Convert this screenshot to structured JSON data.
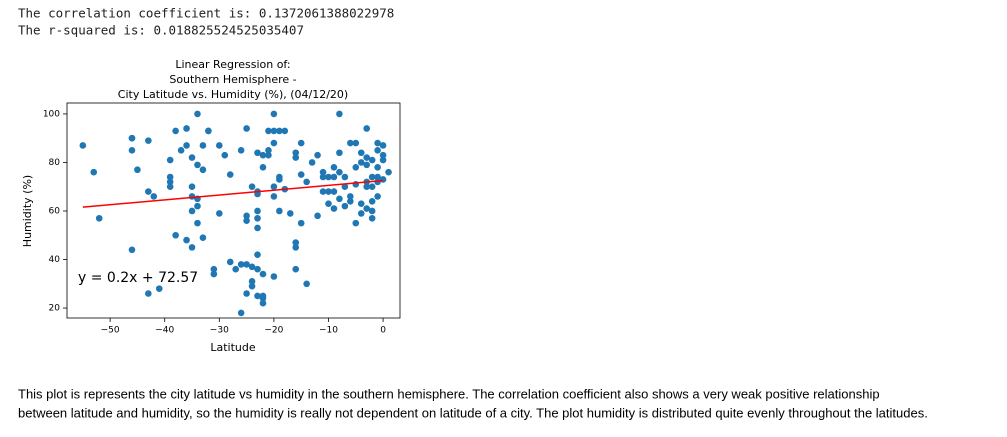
{
  "output": {
    "lines": [
      "The correlation coefficient  is: 0.1372061388022978",
      "The r-squared is: 0.018825524525035407"
    ]
  },
  "chart_data": {
    "type": "scatter",
    "title": [
      "Linear Regression of:",
      "Southern Hemisphere -",
      "City Latitude vs. Humidity (%), (04/12/20)"
    ],
    "xlabel": "Latitude",
    "ylabel": "Humidity (%)",
    "color": "#1f77b4",
    "x": [
      -55,
      -53,
      -52,
      -46,
      -46,
      -46,
      -46,
      -45,
      -43,
      -43,
      -42,
      -43,
      -41,
      -39,
      -39,
      -39,
      -39,
      -38,
      -38,
      -37,
      -36,
      -36,
      -36,
      -35,
      -35,
      -35,
      -35,
      -34,
      -34,
      -34,
      -35,
      -34,
      -34,
      -33,
      -33,
      -33,
      -32,
      -32,
      -31,
      -31,
      -30,
      -30,
      -29,
      -28,
      -28,
      -26,
      -26,
      -25,
      -25,
      -25,
      -25,
      -24,
      -24,
      -24,
      -23,
      -23,
      -23,
      -23,
      -23,
      -23,
      -23,
      -23,
      -23,
      -22,
      -22,
      -22,
      -22,
      -22,
      -21,
      -21,
      -21,
      -20,
      -20,
      -20,
      -20,
      -20,
      -20,
      -19,
      -19,
      -19,
      -19,
      -18,
      -18,
      -17,
      -16,
      -16,
      -16,
      -16,
      -16,
      -15,
      -15,
      -15,
      -14,
      -13,
      -12,
      -12,
      -11,
      -11,
      -10,
      -9,
      -9,
      -8,
      -8,
      -7,
      -7,
      -6,
      -6,
      -5,
      -5,
      -5,
      -4,
      -4,
      -3,
      -3,
      -3,
      -2,
      -2,
      -2,
      -2,
      -1,
      -1,
      -1,
      -1,
      -1,
      0,
      0,
      0,
      1,
      -10,
      -10,
      -9,
      -8,
      -7,
      -5,
      -4,
      -3,
      -4,
      -3,
      -2,
      -1,
      -2,
      0,
      -3,
      -6,
      -26,
      -27,
      -24,
      -11,
      -9,
      -8,
      -14,
      -22,
      -25
    ],
    "values": [
      87,
      76,
      57,
      90,
      90,
      85,
      44,
      77,
      89,
      68,
      66,
      26,
      28,
      74,
      72,
      70,
      81,
      93,
      50,
      85,
      94,
      87,
      48,
      82,
      70,
      66,
      60,
      65,
      62,
      55,
      45,
      100,
      79,
      87,
      77,
      49,
      93,
      93,
      34,
      36,
      59,
      87,
      83,
      75,
      39,
      38,
      85,
      94,
      58,
      56,
      38,
      37,
      31,
      29,
      84,
      68,
      67,
      60,
      57,
      53,
      42,
      36,
      25,
      24,
      22,
      34,
      78,
      83,
      85,
      93,
      83,
      100,
      88,
      93,
      66,
      70,
      33,
      93,
      74,
      73,
      60,
      93,
      69,
      59,
      47,
      45,
      36,
      82,
      84,
      55,
      75,
      88,
      72,
      80,
      83,
      58,
      76,
      74,
      74,
      74,
      78,
      76,
      100,
      74,
      70,
      64,
      66,
      78,
      71,
      88,
      84,
      80,
      82,
      79,
      70,
      81,
      74,
      60,
      57,
      88,
      85,
      78,
      74,
      72,
      81,
      87,
      73,
      76,
      68,
      63,
      68,
      65,
      62,
      55,
      63,
      61,
      59,
      72,
      70,
      66,
      64,
      83,
      94,
      88,
      18,
      36,
      70,
      68,
      61,
      84,
      30,
      25,
      26
    ],
    "regression_line": {
      "x": [
        -55,
        0
      ],
      "values": [
        61.57,
        72.57
      ],
      "color": "#ff0000"
    },
    "annotation": "y = 0.2x + 72.57",
    "xlim": [
      -57.9,
      3.1
    ],
    "ylim": [
      15.9,
      104.5
    ],
    "xticks": [
      {
        "value": -50,
        "label": "−50"
      },
      {
        "value": -40,
        "label": "−40"
      },
      {
        "value": -30,
        "label": "−30"
      },
      {
        "value": -20,
        "label": "−20"
      },
      {
        "value": -10,
        "label": "−10"
      },
      0
    ],
    "yticks": [
      20,
      40,
      60,
      80,
      100
    ]
  },
  "markdown": {
    "lines": [
      "This plot is represents the city latitude vs humidity in the southern hemisphere. The correlation coefficient also shows a very weak positive relationship",
      "between latitude and humidity, so the humidity is really not dependent on latitude of a city. The plot humidity is distributed quite evenly throughout the latitudes."
    ]
  }
}
